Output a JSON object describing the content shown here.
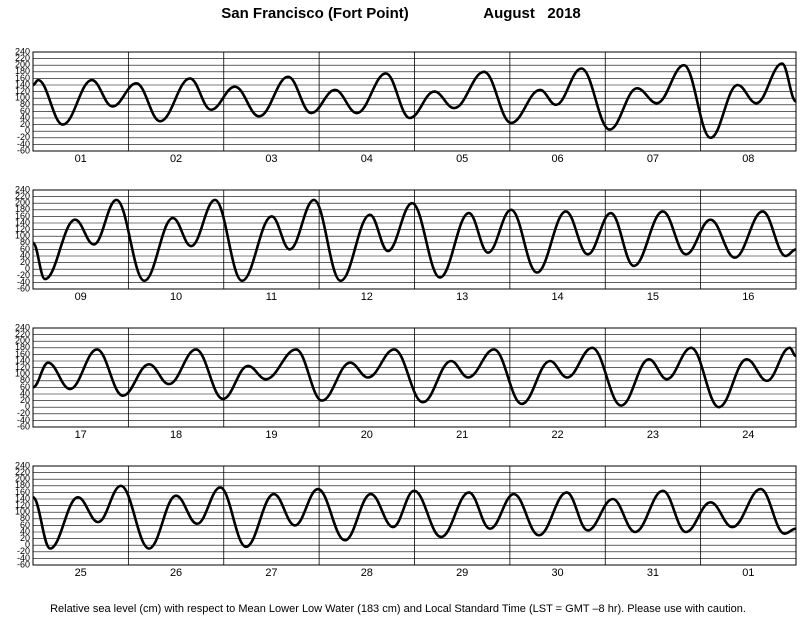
{
  "title": "San Francisco (Fort Point)",
  "date": "August   2018",
  "note": "Relative sea level (cm) with respect to Mean Lower Low Water (183 cm) and Local Standard Time (LST = GMT –8 hr). Please use with caution.",
  "chart_data": [
    {
      "type": "line",
      "color": "#000000",
      "grid": true,
      "xlim": [
        0,
        192
      ],
      "ylim": [
        -60,
        240
      ],
      "yticks": [
        -60,
        -40,
        -20,
        0,
        20,
        40,
        60,
        80,
        100,
        120,
        140,
        160,
        180,
        200,
        220,
        240
      ],
      "categories": [
        "01",
        "02",
        "03",
        "04",
        "05",
        "06",
        "07",
        "08"
      ],
      "x": [
        0,
        1.3,
        7.5,
        14.8,
        20,
        26,
        32,
        39.5,
        44.8,
        50.8,
        56.9,
        64.2,
        70,
        76,
        81.5,
        88.8,
        94.8,
        101,
        106,
        113.5,
        120.3,
        127.6,
        131.6,
        138,
        145.1,
        152,
        157,
        163.8,
        170.5,
        177.3,
        182,
        188.5,
        192
      ],
      "values": [
        140,
        155,
        20,
        155,
        75,
        145,
        30,
        160,
        65,
        135,
        45,
        165,
        55,
        125,
        55,
        175,
        40,
        120,
        70,
        180,
        25,
        125,
        80,
        190,
        5,
        130,
        85,
        200,
        -20,
        140,
        85,
        205,
        90
      ]
    },
    {
      "type": "line",
      "color": "#000000",
      "grid": true,
      "xlim": [
        0,
        192
      ],
      "ylim": [
        -60,
        240
      ],
      "yticks": [
        -60,
        -40,
        -20,
        0,
        20,
        40,
        60,
        80,
        100,
        120,
        140,
        160,
        180,
        200,
        220,
        240
      ],
      "categories": [
        "09",
        "10",
        "11",
        "12",
        "13",
        "14",
        "15",
        "16"
      ],
      "x": [
        0,
        3,
        10.6,
        15.3,
        21,
        28,
        35.2,
        39.8,
        45.8,
        52.6,
        60.1,
        64.6,
        70.7,
        77.4,
        84.8,
        89.3,
        95.4,
        102.4,
        109.7,
        114.5,
        120.3,
        126.8,
        134.1,
        139.6,
        145.4,
        151.2,
        158.5,
        164.3,
        170.5,
        176.6,
        183.6,
        189.4,
        192
      ],
      "values": [
        80,
        -30,
        150,
        75,
        210,
        -35,
        155,
        70,
        210,
        -35,
        160,
        60,
        210,
        -35,
        165,
        55,
        200,
        -25,
        170,
        50,
        180,
        -10,
        175,
        45,
        170,
        10,
        175,
        45,
        150,
        35,
        175,
        40,
        60
      ]
    },
    {
      "type": "line",
      "color": "#000000",
      "grid": true,
      "xlim": [
        0,
        192
      ],
      "ylim": [
        -60,
        240
      ],
      "yticks": [
        -60,
        -40,
        -20,
        0,
        20,
        40,
        60,
        80,
        100,
        120,
        140,
        160,
        180,
        200,
        220,
        240
      ],
      "categories": [
        "17",
        "18",
        "19",
        "20",
        "21",
        "22",
        "23",
        "24"
      ],
      "x": [
        0,
        3.8,
        9.3,
        16.1,
        22.6,
        29.2,
        34.2,
        41,
        47.8,
        54.1,
        58.6,
        66.2,
        72.7,
        79.8,
        84.3,
        90.9,
        98.1,
        105.2,
        109.5,
        116,
        123,
        130.1,
        134.4,
        140.7,
        148,
        155,
        159.5,
        165.6,
        172.6,
        179.6,
        184.7,
        190.4,
        192
      ],
      "values": [
        60,
        135,
        55,
        175,
        35,
        130,
        70,
        175,
        25,
        125,
        85,
        175,
        20,
        135,
        90,
        175,
        15,
        140,
        90,
        175,
        10,
        140,
        90,
        180,
        5,
        145,
        85,
        180,
        0,
        145,
        80,
        180,
        155
      ]
    },
    {
      "type": "line",
      "color": "#000000",
      "grid": true,
      "xlim": [
        0,
        192
      ],
      "ylim": [
        -60,
        240
      ],
      "yticks": [
        -60,
        -40,
        -20,
        0,
        20,
        40,
        60,
        80,
        100,
        120,
        140,
        160,
        180,
        200,
        220,
        240
      ],
      "categories": [
        "25",
        "26",
        "27",
        "28",
        "29",
        "30",
        "31",
        "01"
      ],
      "x": [
        0,
        4.3,
        11.3,
        16.4,
        22.1,
        29.2,
        36,
        41.3,
        47.1,
        53.6,
        60.6,
        65.9,
        71.7,
        78.5,
        85,
        90.6,
        95.9,
        102.7,
        109.7,
        115,
        121,
        127.3,
        134.3,
        139.6,
        145.9,
        151.5,
        158.5,
        164.3,
        170.5,
        176,
        183.1,
        189.1,
        192
      ],
      "values": [
        145,
        -10,
        145,
        70,
        180,
        -10,
        150,
        65,
        175,
        -5,
        155,
        60,
        170,
        15,
        155,
        55,
        165,
        25,
        160,
        50,
        155,
        30,
        160,
        45,
        140,
        40,
        165,
        40,
        130,
        55,
        170,
        35,
        50
      ]
    }
  ]
}
